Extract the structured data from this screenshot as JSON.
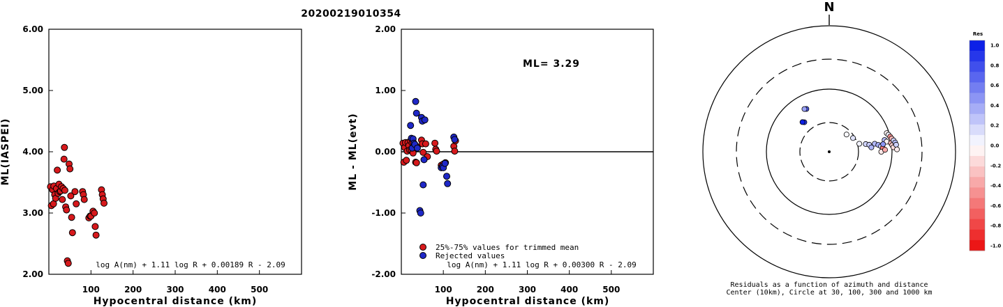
{
  "figure_title": "20200219010354",
  "chart_data": [
    {
      "type": "scatter",
      "ylabel": "ML(IASPEI)",
      "xlabel": "Hypocentral distance (km)",
      "xlim": [
        0,
        600
      ],
      "ylim": [
        2.0,
        6.0
      ],
      "x_ticks": [
        100,
        200,
        300,
        400,
        500
      ],
      "x_tick_labels": [
        "100",
        "200",
        "300",
        "400",
        "500"
      ],
      "y_ticks": [
        2,
        3,
        4,
        5,
        6
      ],
      "y_tick_labels": [
        "2.00",
        "3.00",
        "4.00",
        "5.00",
        "6.00"
      ],
      "formula": "log A(nm) + 1.11 log R + 0.00189 R - 2.09",
      "grid": false,
      "series": [
        {
          "color": "#d7191c",
          "points": [
            [
              4,
              3.43
            ],
            [
              6,
              3.12
            ],
            [
              9,
              3.38
            ],
            [
              11,
              3.15
            ],
            [
              12,
              3.44
            ],
            [
              14,
              3.3
            ],
            [
              16,
              3.24
            ],
            [
              18,
              3.4
            ],
            [
              20,
              3.7
            ],
            [
              22,
              3.32
            ],
            [
              24,
              3.47
            ],
            [
              26,
              3.35
            ],
            [
              28,
              3.36
            ],
            [
              30,
              3.43
            ],
            [
              32,
              3.22
            ],
            [
              34,
              3.4
            ],
            [
              36,
              3.88
            ],
            [
              37,
              4.07
            ],
            [
              38,
              3.37
            ],
            [
              40,
              3.1
            ],
            [
              42,
              3.05
            ],
            [
              44,
              2.22
            ],
            [
              46,
              2.18
            ],
            [
              48,
              3.8
            ],
            [
              50,
              3.72
            ],
            [
              52,
              3.28
            ],
            [
              54,
              2.93
            ],
            [
              56,
              2.68
            ],
            [
              62,
              3.35
            ],
            [
              65,
              3.15
            ],
            [
              80,
              3.35
            ],
            [
              82,
              3.3
            ],
            [
              84,
              3.22
            ],
            [
              95,
              2.92
            ],
            [
              98,
              2.95
            ],
            [
              100,
              2.95
            ],
            [
              105,
              3.03
            ],
            [
              108,
              3.0
            ],
            [
              110,
              2.78
            ],
            [
              112,
              2.64
            ],
            [
              125,
              3.38
            ],
            [
              127,
              3.3
            ],
            [
              129,
              3.23
            ],
            [
              131,
              3.16
            ]
          ]
        }
      ]
    },
    {
      "type": "scatter",
      "ylabel": "ML - ML(evt)",
      "xlabel": "Hypocentral distance (km)",
      "xlim": [
        0,
        600
      ],
      "ylim": [
        -2.0,
        2.0
      ],
      "x_ticks": [
        100,
        200,
        300,
        400,
        500
      ],
      "x_tick_labels": [
        "100",
        "200",
        "300",
        "400",
        "500"
      ],
      "y_ticks": [
        -2,
        -1,
        0,
        1,
        2
      ],
      "y_tick_labels": [
        "-2.00",
        "-1.00",
        "0.00",
        "1.00",
        "2.00"
      ],
      "reference_line": 0,
      "ml_label": "ML= 3.29",
      "formula": "log A(nm) + 1.11 log R + 0.00300 R - 2.09",
      "grid": false,
      "series": [
        {
          "name": "25%-75% values for trimmed mean",
          "color": "#d7191c",
          "points": [
            [
              4,
              0.14
            ],
            [
              6,
              -0.17
            ],
            [
              8,
              0.07
            ],
            [
              10,
              0.15
            ],
            [
              12,
              -0.14
            ],
            [
              14,
              0.01
            ],
            [
              16,
              0.15
            ],
            [
              18,
              0.1
            ],
            [
              20,
              0.03
            ],
            [
              22,
              0.18
            ],
            [
              24,
              0.03
            ],
            [
              26,
              0.14
            ],
            [
              28,
              -0.02
            ],
            [
              30,
              0.11
            ],
            [
              32,
              0.12
            ],
            [
              34,
              -0.17
            ],
            [
              36,
              -0.18
            ],
            [
              38,
              0.08
            ],
            [
              48,
              0.19
            ],
            [
              50,
              0.13
            ],
            [
              52,
              -0.01
            ],
            [
              58,
              0.13
            ],
            [
              62,
              -0.08
            ],
            [
              80,
              0.14
            ],
            [
              82,
              0.04
            ],
            [
              84,
              0.01
            ],
            [
              95,
              -0.22
            ],
            [
              100,
              -0.2
            ],
            [
              105,
              -0.18
            ],
            [
              125,
              0.09
            ],
            [
              127,
              0.01
            ],
            [
              129,
              0.18
            ]
          ]
        },
        {
          "name": "Rejected values",
          "color": "#1f28c8",
          "points": [
            [
              22,
              0.43
            ],
            [
              24,
              0.22
            ],
            [
              26,
              0.06
            ],
            [
              28,
              0.21
            ],
            [
              30,
              0.14
            ],
            [
              32,
              0.12
            ],
            [
              34,
              0.82
            ],
            [
              36,
              0.63
            ],
            [
              38,
              0.06
            ],
            [
              44,
              -0.96
            ],
            [
              46,
              -1.0
            ],
            [
              48,
              0.56
            ],
            [
              50,
              0.5
            ],
            [
              52,
              -0.54
            ],
            [
              54,
              -0.13
            ],
            [
              56,
              0.52
            ],
            [
              95,
              -0.26
            ],
            [
              98,
              -0.24
            ],
            [
              100,
              -0.26
            ],
            [
              104,
              -0.19
            ],
            [
              108,
              -0.4
            ],
            [
              110,
              -0.52
            ],
            [
              125,
              0.24
            ],
            [
              127,
              0.2
            ]
          ]
        }
      ]
    },
    {
      "type": "polar-scatter",
      "north_label": "N",
      "caption_line1": "Residuals as a function of azimuth and distance",
      "caption_line2": "Center (10km), Circle at 30, 100, 300 and 1000 km",
      "colorbar_title": "Res",
      "colorbar_ticks": [
        "1.0",
        "0.8",
        "0.6",
        "0.4",
        "0.2",
        "0.0",
        "-0.2",
        "-0.4",
        "-0.6",
        "-0.8",
        "-1.0"
      ],
      "stations": [
        {
          "azimuth_deg": 45,
          "distance_km": 25,
          "residual": 0.02
        },
        {
          "azimuth_deg": 60,
          "distance_km": 28,
          "residual": 0.12
        },
        {
          "azimuth_deg": 75,
          "distance_km": 32,
          "residual": 0.05
        },
        {
          "azimuth_deg": 78,
          "distance_km": 40,
          "residual": 0.18
        },
        {
          "azimuth_deg": 80,
          "distance_km": 45,
          "residual": 0.22
        },
        {
          "azimuth_deg": 84,
          "distance_km": 48,
          "residual": 0.32
        },
        {
          "azimuth_deg": 80,
          "distance_km": 55,
          "residual": 0.3
        },
        {
          "azimuth_deg": 82,
          "distance_km": 62,
          "residual": 0.35
        },
        {
          "azimuth_deg": 84,
          "distance_km": 68,
          "residual": 0.2
        },
        {
          "azimuth_deg": 86,
          "distance_km": 72,
          "residual": -0.55
        },
        {
          "azimuth_deg": 90,
          "distance_km": 68,
          "residual": -0.1
        },
        {
          "azimuth_deg": 78,
          "distance_km": 80,
          "residual": 0.3
        },
        {
          "azimuth_deg": 80,
          "distance_km": 85,
          "residual": -0.05
        },
        {
          "azimuth_deg": 82,
          "distance_km": 74,
          "residual": 0.45
        },
        {
          "azimuth_deg": 88,
          "distance_km": 78,
          "residual": -0.35
        },
        {
          "azimuth_deg": 72,
          "distance_km": 92,
          "residual": -0.05
        },
        {
          "azimuth_deg": 74,
          "distance_km": 96,
          "residual": 0.05
        },
        {
          "azimuth_deg": 76,
          "distance_km": 100,
          "residual": -0.45
        },
        {
          "azimuth_deg": 78,
          "distance_km": 104,
          "residual": -0.3
        },
        {
          "azimuth_deg": 82,
          "distance_km": 98,
          "residual": -0.3
        },
        {
          "azimuth_deg": 84,
          "distance_km": 102,
          "residual": -0.2
        },
        {
          "azimuth_deg": 86,
          "distance_km": 106,
          "residual": -0.15
        },
        {
          "azimuth_deg": 80,
          "distance_km": 110,
          "residual": 0.18
        },
        {
          "azimuth_deg": 82,
          "distance_km": 115,
          "residual": 0.3
        },
        {
          "azimuth_deg": 84,
          "distance_km": 118,
          "residual": 0.2
        },
        {
          "azimuth_deg": 88,
          "distance_km": 120,
          "residual": -0.08
        },
        {
          "azimuth_deg": -28,
          "distance_km": 60,
          "residual": 0.7
        },
        {
          "azimuth_deg": -30,
          "distance_km": 62,
          "residual": 0.4
        },
        {
          "azimuth_deg": -40,
          "distance_km": 42,
          "residual": 0.85
        },
        {
          "azimuth_deg": -42,
          "distance_km": 44,
          "residual": 0.95
        }
      ]
    }
  ]
}
